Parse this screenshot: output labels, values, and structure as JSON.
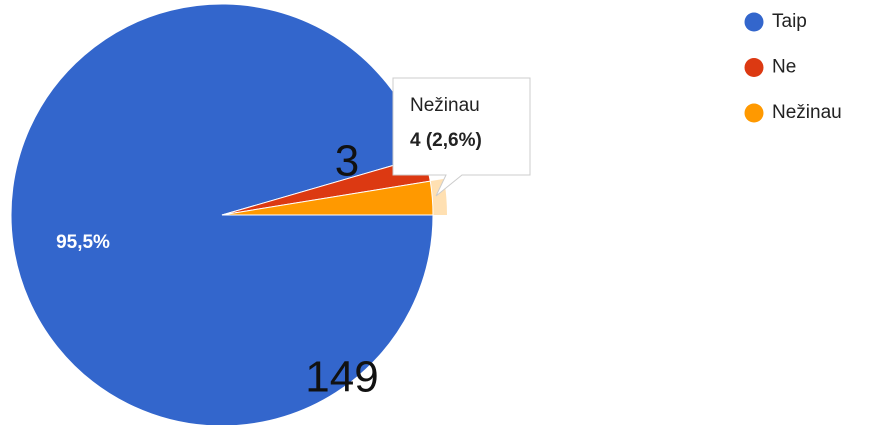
{
  "chart_data": {
    "type": "pie",
    "categories": [
      "Taip",
      "Ne",
      "Nežinau"
    ],
    "values": [
      149,
      3,
      4
    ],
    "colors": [
      "#3366cc",
      "#dc3912",
      "#ff9900"
    ],
    "slice_label": "95,5%",
    "tooltip": {
      "title": "Nežinau",
      "text": "4 (2,6%)"
    }
  }
}
